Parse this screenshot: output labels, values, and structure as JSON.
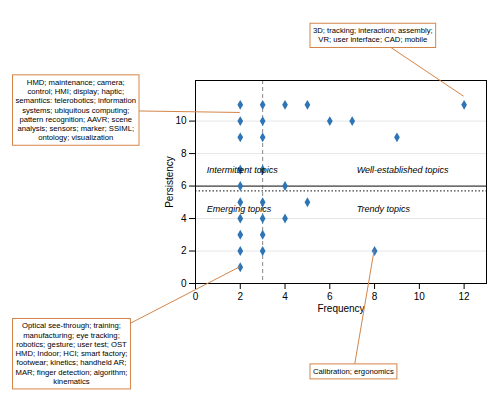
{
  "chart_data": {
    "type": "scatter",
    "x": [
      2,
      3,
      4,
      5,
      12,
      2,
      3,
      6,
      7,
      2,
      3,
      9,
      2,
      3,
      2,
      4,
      2,
      3,
      5,
      2,
      3,
      4,
      2,
      3,
      2,
      3,
      8,
      2
    ],
    "values": [
      11,
      11,
      11,
      11,
      11,
      10,
      10,
      10,
      10,
      9,
      9,
      9,
      7,
      7,
      6,
      6,
      5,
      5,
      5,
      4,
      4,
      4,
      3,
      3,
      2,
      2,
      2,
      1
    ],
    "color": "#2E75B6",
    "marker": "diamond",
    "xlim": [
      0,
      13
    ],
    "ylim": [
      0,
      12.5
    ],
    "xticks": [
      0,
      2,
      4,
      6,
      8,
      10,
      12
    ],
    "yticks": [
      0,
      2,
      4,
      6,
      8,
      10
    ],
    "xlabel": "Frequency",
    "ylabel": "Persistency",
    "grid": true,
    "vlines": [
      {
        "x": 3.0,
        "color": "#888888",
        "line_style": "dashed"
      }
    ],
    "hlines": [
      {
        "y": 6.0,
        "color": "#404040",
        "line_style": "solid"
      },
      {
        "y": 5.7,
        "color": "#404040",
        "line_style": "dotted"
      }
    ],
    "quadrant_labels": [
      {
        "text": "Intermittent topics",
        "x": 0.5,
        "y": 6.8
      },
      {
        "text": "Well-established topics",
        "x": 7.2,
        "y": 6.8
      },
      {
        "text": "Emerging topics",
        "x": 0.5,
        "y": 4.8
      },
      {
        "text": "Trendy topics",
        "x": 7.2,
        "y": 4.8
      }
    ],
    "annotations": [
      {
        "text": "HMD; maintenance; camera;\ncontrol; HMI; display; haptic;\nsemantics: telerobotics; information\nsystems; ubiquitous computing;\npattern recognition; AAVR; scene\nanalysis; sensors; marker; SSIML;\nontology; visualization",
        "x": 2.0,
        "y": 10.5,
        "color": "#D4854A"
      },
      {
        "text": "3D; tracking; interaction; assembly;\nVR; user interface; CAD; mobile",
        "x": 12.0,
        "y": 11.5,
        "color": "#D4854A"
      },
      {
        "text": "Optical see-through; training;\nmanufacturing; eye tracking;\nrobotics; gesture; user test; OST\nHMD; Indoor; HCI; smart factory;\nfootwear; kinetics; handheld AR;\nMAR; finger detection; algorithm;\nkinematics",
        "x": 2.0,
        "y": 1.0,
        "color": "#D4854A"
      },
      {
        "text": "Calibration; ergonomics",
        "x": 8.0,
        "y": 2.0,
        "color": "#D4854A"
      }
    ]
  }
}
